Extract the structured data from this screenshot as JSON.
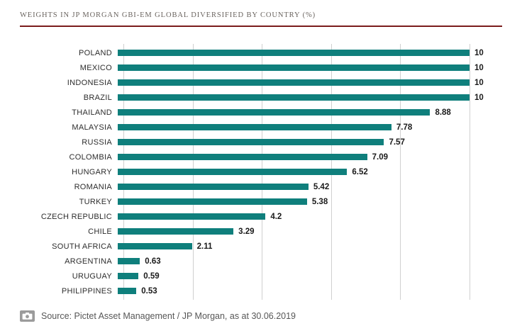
{
  "title": "WEIGHTS IN JP MORGAN GBI-EM GLOBAL DIVERSIFIED BY COUNTRY (%)",
  "footer": {
    "text": "Source: Pictet Asset Management / JP Morgan, as at 30.06.2019",
    "icon": "camera-icon"
  },
  "colors": {
    "bar": "#0f7f7c",
    "title_rule": "#7a1b1b",
    "grid": "#d0d0d0",
    "title_text": "#6b6560",
    "footer_text": "#575757"
  },
  "chart_data": {
    "type": "bar",
    "orientation": "horizontal",
    "title": "WEIGHTS IN JP MORGAN GBI-EM GLOBAL DIVERSIFIED BY COUNTRY (%)",
    "xlabel": "",
    "ylabel": "",
    "xlim": [
      0,
      10
    ],
    "gridlines": [
      0,
      2,
      4,
      6,
      8,
      10
    ],
    "legend": "none",
    "categories": [
      "POLAND",
      "MEXICO",
      "INDONESIA",
      "BRAZIL",
      "THAILAND",
      "MALAYSIA",
      "RUSSIA",
      "COLOMBIA",
      "HUNGARY",
      "ROMANIA",
      "TURKEY",
      "CZECH REPUBLIC",
      "CHILE",
      "SOUTH AFRICA",
      "ARGENTINA",
      "URUGUAY",
      "PHILIPPINES"
    ],
    "values": [
      10,
      10,
      10,
      10,
      8.88,
      7.78,
      7.57,
      7.09,
      6.52,
      5.42,
      5.38,
      4.2,
      3.29,
      2.11,
      0.63,
      0.59,
      0.53
    ]
  }
}
